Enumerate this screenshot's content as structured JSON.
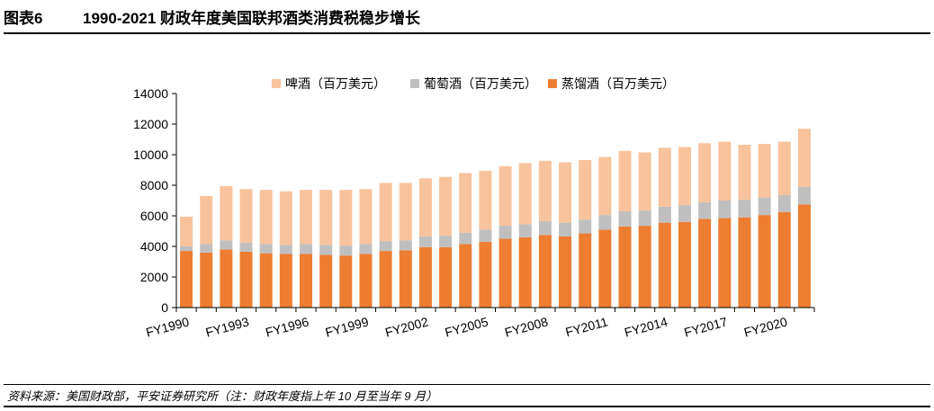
{
  "header": {
    "figure_label": "图表6",
    "title": "1990-2021 财政年度美国联邦酒类消费税稳步增长"
  },
  "footer": {
    "source": "资料来源：美国财政部，平安证券研究所（注：财政年度指上年 10 月至当年 9 月）"
  },
  "colors": {
    "beer": "#F8C39C",
    "wine": "#BFBFBF",
    "spirits": "#ED7D31",
    "axis": "#000000"
  },
  "chart_data": {
    "type": "bar",
    "stacked": true,
    "title": "",
    "xlabel": "",
    "ylabel": "",
    "ylim": [
      0,
      14000
    ],
    "yticks": [
      0,
      2000,
      4000,
      6000,
      8000,
      10000,
      12000,
      14000
    ],
    "legend_position": "top",
    "grid": false,
    "categories": [
      "FY1990",
      "FY1991",
      "FY1992",
      "FY1993",
      "FY1994",
      "FY1995",
      "FY1996",
      "FY1997",
      "FY1998",
      "FY1999",
      "FY2000",
      "FY2001",
      "FY2002",
      "FY2003",
      "FY2004",
      "FY2005",
      "FY2006",
      "FY2007",
      "FY2008",
      "FY2009",
      "FY2010",
      "FY2011",
      "FY2012",
      "FY2013",
      "FY2014",
      "FY2015",
      "FY2016",
      "FY2017",
      "FY2018",
      "FY2019",
      "FY2020",
      "FY2021"
    ],
    "xtick_labels": [
      "FY1990",
      "FY1993",
      "FY1996",
      "FY1999",
      "FY2002",
      "FY2005",
      "FY2008",
      "FY2011",
      "FY2014",
      "FY2017",
      "FY2020"
    ],
    "series": [
      {
        "name": "蒸馏酒（百万美元）",
        "color_key": "spirits",
        "values": [
          3700,
          3600,
          3800,
          3650,
          3550,
          3500,
          3500,
          3450,
          3400,
          3500,
          3700,
          3750,
          3950,
          3950,
          4150,
          4300,
          4500,
          4600,
          4750,
          4650,
          4850,
          5100,
          5300,
          5350,
          5550,
          5600,
          5800,
          5850,
          5900,
          6050,
          6250,
          6750
        ]
      },
      {
        "name": "葡萄酒（百万美元）",
        "color_key": "wine",
        "values": [
          300,
          550,
          600,
          600,
          600,
          600,
          650,
          650,
          650,
          650,
          650,
          650,
          700,
          750,
          750,
          800,
          850,
          850,
          900,
          900,
          900,
          950,
          1000,
          1000,
          1050,
          1100,
          1100,
          1150,
          1150,
          1150,
          1100,
          1150
        ]
      },
      {
        "name": "啤酒（百万美元）",
        "color_key": "beer",
        "values": [
          1950,
          3150,
          3550,
          3500,
          3550,
          3500,
          3550,
          3600,
          3650,
          3600,
          3800,
          3750,
          3800,
          3850,
          3900,
          3850,
          3900,
          4000,
          3950,
          3950,
          3900,
          3800,
          3950,
          3800,
          3850,
          3800,
          3850,
          3850,
          3600,
          3500,
          3500,
          3800
        ]
      }
    ]
  }
}
